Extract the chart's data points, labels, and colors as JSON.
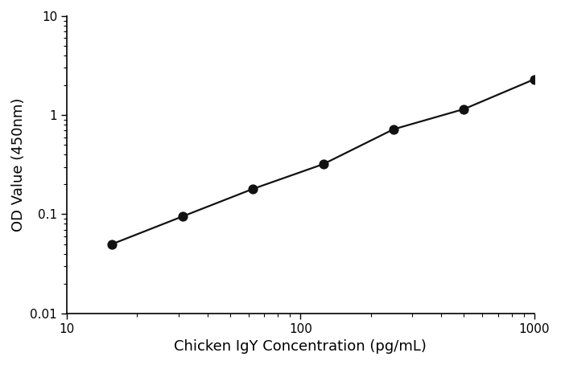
{
  "x_values": [
    15.625,
    31.25,
    62.5,
    125,
    250,
    500,
    1000
  ],
  "y_values": [
    0.05,
    0.095,
    0.18,
    0.32,
    0.72,
    1.15,
    2.3
  ],
  "xlabel": "Chicken IgY Concentration (pg/mL)",
  "ylabel": "OD Value (450nm)",
  "xlim": [
    10,
    1000
  ],
  "ylim": [
    0.01,
    10
  ],
  "line_color": "#111111",
  "marker_color": "#111111",
  "marker_size": 8,
  "line_width": 1.6,
  "background_color": "#ffffff",
  "xlabel_fontsize": 13,
  "ylabel_fontsize": 13,
  "tick_fontsize": 11
}
